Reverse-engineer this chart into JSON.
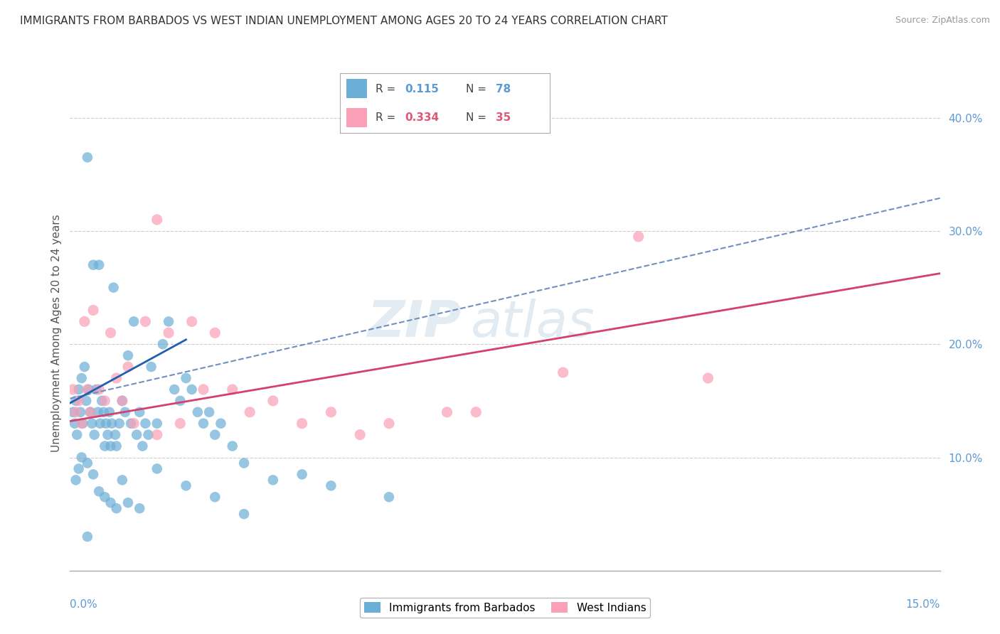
{
  "title": "IMMIGRANTS FROM BARBADOS VS WEST INDIAN UNEMPLOYMENT AMONG AGES 20 TO 24 YEARS CORRELATION CHART",
  "source": "Source: ZipAtlas.com",
  "ylabel": "Unemployment Among Ages 20 to 24 years",
  "xmin": 0.0,
  "xmax": 15.0,
  "ymin": 0.0,
  "ymax": 42.0,
  "yticks": [
    0.0,
    10.0,
    20.0,
    30.0,
    40.0
  ],
  "ytick_labels": [
    "",
    "10.0%",
    "20.0%",
    "30.0%",
    "40.0%"
  ],
  "blue_color": "#6baed6",
  "pink_color": "#fa9fb5",
  "blue_solid_line_color": "#2060b0",
  "blue_dashed_line_color": "#7090c0",
  "pink_line_color": "#d44070",
  "watermark": "ZIPatlas",
  "blue_dashed_slope": 1.18,
  "blue_dashed_intercept": 15.2,
  "blue_solid_slope": 2.8,
  "blue_solid_intercept": 14.8,
  "pink_slope": 0.87,
  "pink_intercept": 13.2,
  "blue_x": [
    0.05,
    0.08,
    0.1,
    0.12,
    0.15,
    0.18,
    0.2,
    0.22,
    0.25,
    0.28,
    0.3,
    0.32,
    0.35,
    0.38,
    0.4,
    0.42,
    0.45,
    0.48,
    0.5,
    0.52,
    0.55,
    0.58,
    0.6,
    0.62,
    0.65,
    0.68,
    0.7,
    0.72,
    0.75,
    0.78,
    0.8,
    0.85,
    0.9,
    0.95,
    1.0,
    1.05,
    1.1,
    1.15,
    1.2,
    1.25,
    1.3,
    1.35,
    1.4,
    1.5,
    1.6,
    1.7,
    1.8,
    1.9,
    2.0,
    2.1,
    2.2,
    2.3,
    2.4,
    2.5,
    2.6,
    2.8,
    3.0,
    3.5,
    4.0,
    4.5,
    0.1,
    0.15,
    0.2,
    0.3,
    0.4,
    0.5,
    0.6,
    0.7,
    0.8,
    0.9,
    1.0,
    1.2,
    1.5,
    2.0,
    2.5,
    3.0,
    0.3,
    5.5
  ],
  "blue_y": [
    14.0,
    13.0,
    15.0,
    12.0,
    16.0,
    14.0,
    17.0,
    13.0,
    18.0,
    15.0,
    36.5,
    16.0,
    14.0,
    13.0,
    27.0,
    12.0,
    16.0,
    14.0,
    27.0,
    13.0,
    15.0,
    14.0,
    11.0,
    13.0,
    12.0,
    14.0,
    11.0,
    13.0,
    25.0,
    12.0,
    11.0,
    13.0,
    15.0,
    14.0,
    19.0,
    13.0,
    22.0,
    12.0,
    14.0,
    11.0,
    13.0,
    12.0,
    18.0,
    13.0,
    20.0,
    22.0,
    16.0,
    15.0,
    17.0,
    16.0,
    14.0,
    13.0,
    14.0,
    12.0,
    13.0,
    11.0,
    9.5,
    8.0,
    8.5,
    7.5,
    8.0,
    9.0,
    10.0,
    9.5,
    8.5,
    7.0,
    6.5,
    6.0,
    5.5,
    8.0,
    6.0,
    5.5,
    9.0,
    7.5,
    6.5,
    5.0,
    3.0,
    6.5
  ],
  "pink_x": [
    0.05,
    0.1,
    0.15,
    0.2,
    0.25,
    0.3,
    0.35,
    0.4,
    0.5,
    0.6,
    0.7,
    0.8,
    0.9,
    1.0,
    1.1,
    1.3,
    1.5,
    1.7,
    1.9,
    2.1,
    2.3,
    2.5,
    2.8,
    3.1,
    3.5,
    4.0,
    4.5,
    5.0,
    5.5,
    6.5,
    7.0,
    8.5,
    9.8,
    11.0,
    1.5
  ],
  "pink_y": [
    16.0,
    14.0,
    15.0,
    13.0,
    22.0,
    16.0,
    14.0,
    23.0,
    16.0,
    15.0,
    21.0,
    17.0,
    15.0,
    18.0,
    13.0,
    22.0,
    31.0,
    21.0,
    13.0,
    22.0,
    16.0,
    21.0,
    16.0,
    14.0,
    15.0,
    13.0,
    14.0,
    12.0,
    13.0,
    14.0,
    14.0,
    17.5,
    29.5,
    17.0,
    12.0
  ]
}
